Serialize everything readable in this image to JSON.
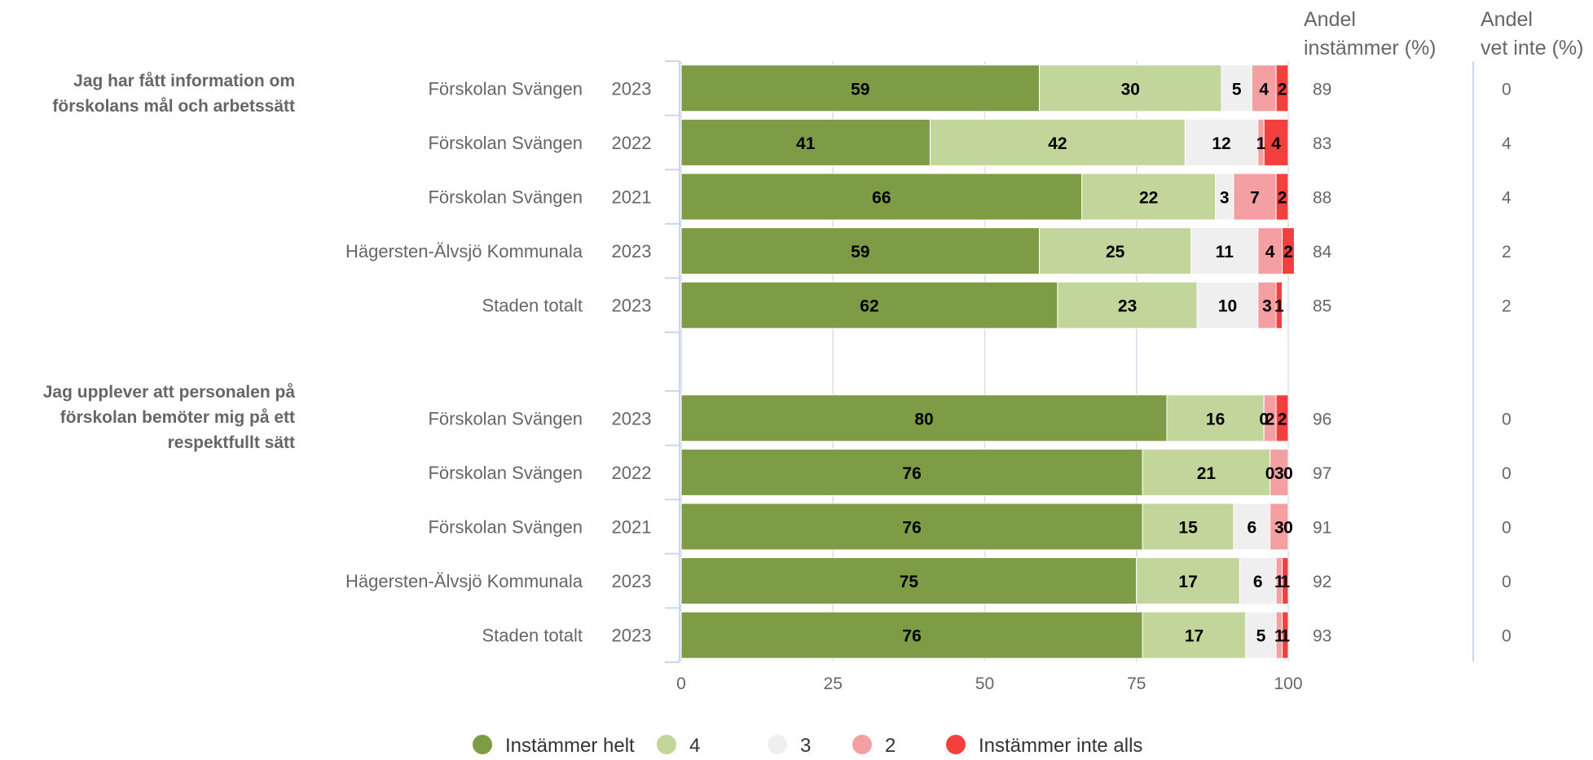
{
  "chart_data": {
    "type": "bar",
    "orientation": "horizontal",
    "stacked": true,
    "xlim": [
      0,
      100
    ],
    "x_ticks": [
      "0",
      "25",
      "50",
      "75",
      "100"
    ],
    "grid": true,
    "legend_position": "bottom",
    "series": [
      {
        "name": "Instämmer helt",
        "color": "#7d9c45"
      },
      {
        "name": "4",
        "color": "#c2d69c"
      },
      {
        "name": "3",
        "color": "#efefef"
      },
      {
        "name": "2",
        "color": "#f4a0a2"
      },
      {
        "name": "Instämmer inte alls",
        "color": "#f43f3f"
      }
    ],
    "column_headers": {
      "agree": [
        "Andel",
        "instämmer (%)"
      ],
      "dont_know": [
        "Andel",
        "vet inte (%)"
      ]
    },
    "groups": [
      {
        "question": [
          "Jag har fått information om",
          "förskolans mål och arbetssätt"
        ],
        "rows": [
          {
            "label": "Förskolan Svängen",
            "year": "2023",
            "values": [
              59,
              30,
              5,
              4,
              2
            ],
            "agree": "89",
            "dont_know": "0"
          },
          {
            "label": "Förskolan Svängen",
            "year": "2022",
            "values": [
              41,
              42,
              12,
              1,
              4
            ],
            "agree": "83",
            "dont_know": "4"
          },
          {
            "label": "Förskolan Svängen",
            "year": "2021",
            "values": [
              66,
              22,
              3,
              7,
              2
            ],
            "agree": "88",
            "dont_know": "4"
          },
          {
            "label": "Hägersten-Älvsjö Kommunala",
            "year": "2023",
            "values": [
              59,
              25,
              11,
              4,
              2
            ],
            "agree": "84",
            "dont_know": "2"
          },
          {
            "label": "Staden totalt",
            "year": "2023",
            "values": [
              62,
              23,
              10,
              3,
              1
            ],
            "agree": "85",
            "dont_know": "2"
          }
        ]
      },
      {
        "question": [
          "Jag upplever att personalen på",
          "förskolan bemöter mig på ett",
          "respektfullt sätt"
        ],
        "rows": [
          {
            "label": "Förskolan Svängen",
            "year": "2023",
            "values": [
              80,
              16,
              0,
              2,
              2
            ],
            "agree": "96",
            "dont_know": "0"
          },
          {
            "label": "Förskolan Svängen",
            "year": "2022",
            "values": [
              76,
              21,
              0,
              3,
              0
            ],
            "agree": "97",
            "dont_know": "0"
          },
          {
            "label": "Förskolan Svängen",
            "year": "2021",
            "values": [
              76,
              15,
              6,
              3,
              0
            ],
            "agree": "91",
            "dont_know": "0"
          },
          {
            "label": "Hägersten-Älvsjö Kommunala",
            "year": "2023",
            "values": [
              75,
              17,
              6,
              1,
              1
            ],
            "agree": "92",
            "dont_know": "0"
          },
          {
            "label": "Staden totalt",
            "year": "2023",
            "values": [
              76,
              17,
              5,
              1,
              1
            ],
            "agree": "93",
            "dont_know": "0"
          }
        ]
      }
    ]
  }
}
